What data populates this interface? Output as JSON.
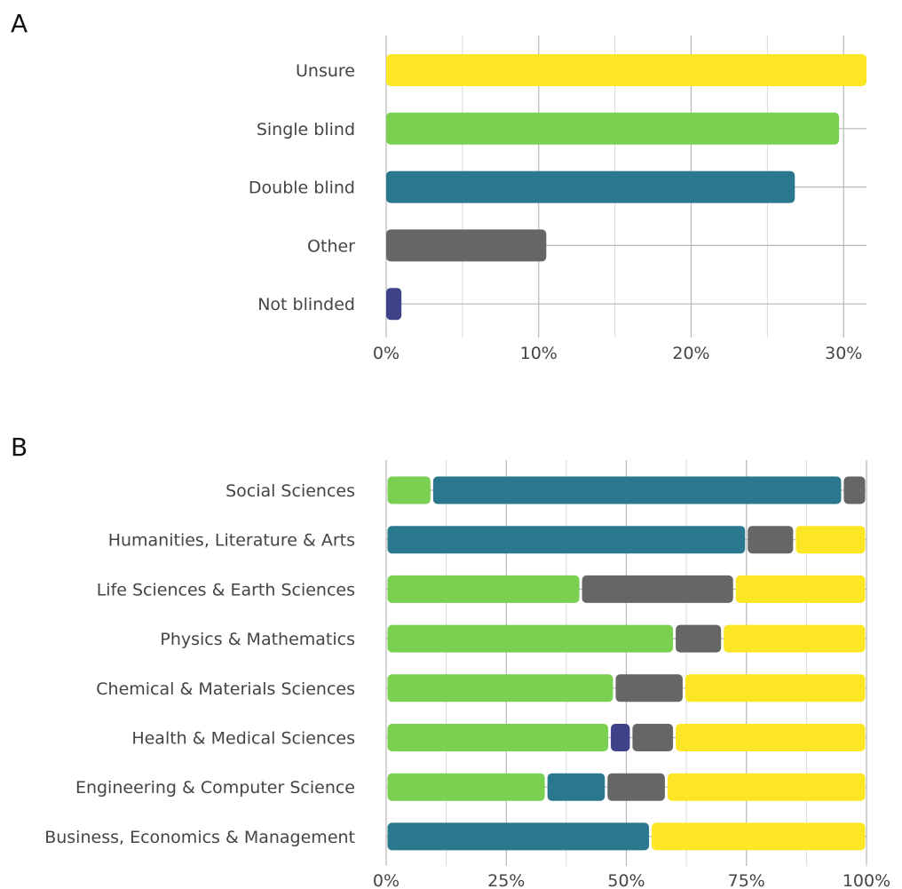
{
  "colors": {
    "single_blind": "#7ad151",
    "double_blind": "#2a788e",
    "other": "#666666",
    "not_blinded": "#3e4289",
    "unsure": "#fde725"
  },
  "panel_labels": [
    "A",
    "B"
  ],
  "chart_data": [
    {
      "type": "bar",
      "orientation": "horizontal",
      "panel": "A",
      "categories": [
        "Unsure",
        "Single blind",
        "Double blind",
        "Other",
        "Not blinded"
      ],
      "values": [
        31.5,
        29.7,
        26.8,
        10.5,
        1.0
      ],
      "colors": [
        "#fde725",
        "#7ad151",
        "#2a788e",
        "#666666",
        "#3e4289"
      ],
      "xlim": [
        0,
        31.5
      ],
      "xticks": [
        0,
        10,
        20,
        30
      ],
      "xtick_labels": [
        "0%",
        "10%",
        "20%",
        "30%"
      ],
      "title": "",
      "xlabel": "",
      "ylabel": "",
      "grid": true
    },
    {
      "type": "bar",
      "orientation": "horizontal",
      "stacked": true,
      "panel": "B",
      "categories": [
        "Social Sciences",
        "Humanities, Literature & Arts",
        "Life Sciences & Earth Sciences",
        "Physics & Mathematics",
        "Chemical & Materials Sciences",
        "Health & Medical Sciences",
        "Engineering & Computer Science",
        "Business, Economics & Management"
      ],
      "series": [
        {
          "key": "single_blind",
          "color": "#7ad151",
          "values": [
            9.5,
            0,
            40.5,
            60,
            47.5,
            46.5,
            33.3,
            0
          ]
        },
        {
          "key": "double_blind",
          "color": "#2a788e",
          "values": [
            85.5,
            75,
            0,
            0,
            0,
            0,
            12.5,
            55
          ]
        },
        {
          "key": "not_blinded",
          "color": "#3e4289",
          "values": [
            0,
            0,
            0,
            0,
            0,
            4.5,
            0,
            0
          ]
        },
        {
          "key": "other",
          "color": "#666666",
          "values": [
            5,
            10,
            32,
            10,
            14.5,
            9,
            12.5,
            0
          ]
        },
        {
          "key": "unsure",
          "color": "#fde725",
          "values": [
            0,
            15,
            27.5,
            30,
            38,
            40,
            41.7,
            45
          ]
        }
      ],
      "xlim": [
        0,
        100
      ],
      "xticks": [
        0,
        25,
        50,
        75,
        100
      ],
      "xtick_labels": [
        "0%",
        "25%",
        "50%",
        "75%",
        "100%"
      ],
      "title": "",
      "xlabel": "",
      "ylabel": "",
      "grid": true
    }
  ]
}
